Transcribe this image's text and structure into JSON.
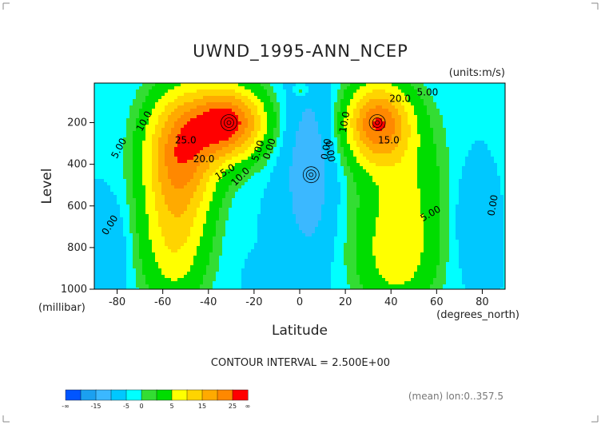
{
  "colors": {
    "lev_-20": "#0055ff",
    "lev_-15": "#1ba0f0",
    "lev_-10": "#3bb8ff",
    "lev_-5": "#00c8ff",
    "lev_0": "#00ffff",
    "lev_2": "#33dd33",
    "lev_5": "#00dd00",
    "lev_10": "#ffff00",
    "lev_15": "#ffd400",
    "lev_20": "#ffaa00",
    "lev_25": "#ff8800",
    "lev_30": "#ff0000"
  },
  "chart_data": {
    "type": "contour",
    "title": "UWND_1995-ANN_NCEP",
    "units": "(units:m/s)",
    "xlabel": "Latitude",
    "xunits": "(degrees_north)",
    "ylabel": "Level",
    "yunits": "(millibar)",
    "xlim": [
      -90,
      90
    ],
    "ylim": [
      1000,
      10
    ],
    "x_ticks": [
      "-80",
      "-60",
      "-40",
      "-20",
      "0",
      "20",
      "40",
      "60",
      "80"
    ],
    "y_ticks": [
      "200",
      "400",
      "600",
      "800",
      "1000"
    ],
    "contour_interval_text": "CONTOUR INTERVAL = 2.500E+00",
    "contour_interval": 2.5,
    "mean_text": "(mean) lon:0..357.5",
    "colorbar": {
      "levels": [
        -20,
        -15,
        -10,
        -5,
        0,
        5,
        10,
        15,
        20,
        25,
        30
      ],
      "labels": [
        "-∞",
        "-15",
        "-5",
        "0",
        "5",
        "15",
        "25",
        "∞"
      ]
    },
    "contour_labels": [
      "10.0",
      "5.00",
      "0.00",
      "25.0",
      "20.0",
      "15.0",
      "10.0",
      "5.00",
      "0.00",
      "0.00",
      "5.00",
      "10.0",
      "15.0",
      "20.0",
      "5.00",
      "0.00",
      "0.00"
    ],
    "features": [
      {
        "name": "southern hemisphere jet maximum",
        "latitude": -31,
        "level": 200,
        "value": 30
      },
      {
        "name": "northern hemisphere jet maximum",
        "latitude": 34,
        "level": 200,
        "value": 25
      },
      {
        "name": "equatorial easterly minimum",
        "latitude": 5,
        "level": 450,
        "value": -7.5
      }
    ]
  }
}
